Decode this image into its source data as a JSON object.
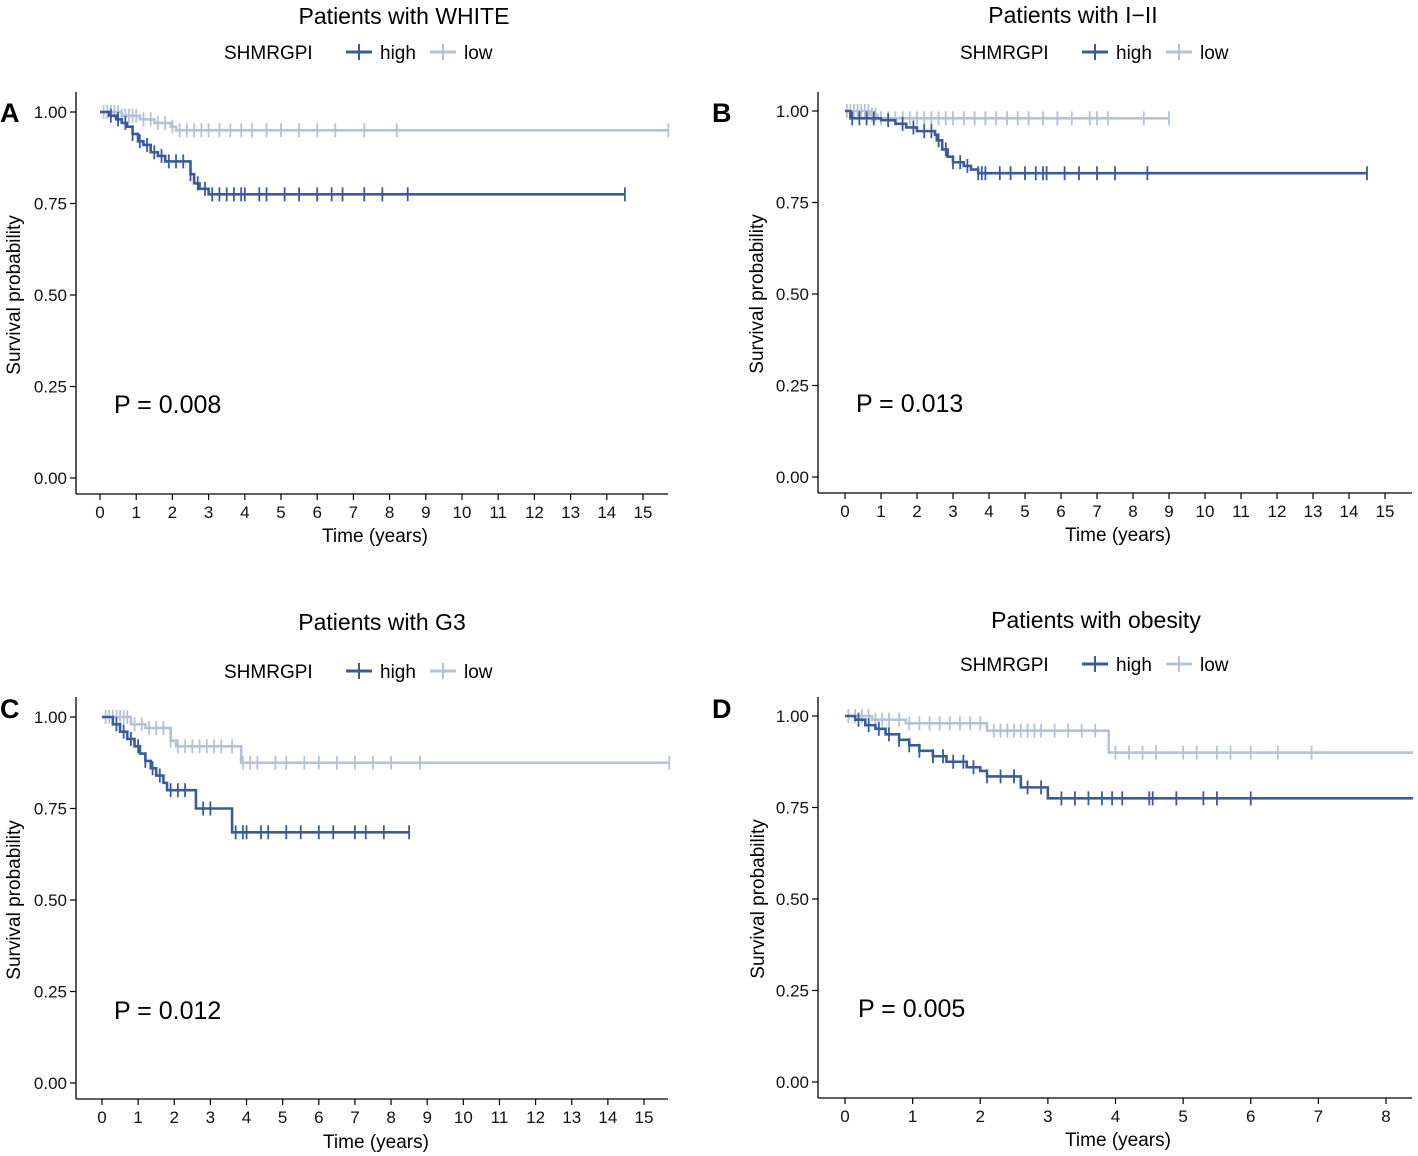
{
  "colors": {
    "high": "#3a5a9a",
    "low": "#b3c2d9"
  },
  "chart_data": [
    {
      "type": "line",
      "panel": "A",
      "title": "Patients with WHITE",
      "legend_title": "SHMRGPI",
      "legend": [
        "high",
        "low"
      ],
      "xlabel": "Time (years)",
      "ylabel": "Survival probability",
      "xlim": [
        0,
        15.7
      ],
      "ylim": [
        0,
        1
      ],
      "xticks": [
        "0",
        "1",
        "2",
        "3",
        "4",
        "5",
        "6",
        "7",
        "8",
        "9",
        "10",
        "11",
        "12",
        "13",
        "14",
        "15"
      ],
      "yticks": [
        "0.00",
        "0.25",
        "0.50",
        "0.75",
        "1.00"
      ],
      "p_value": "P = 0.008",
      "series": [
        {
          "name": "high",
          "steps": [
            [
              0,
              1
            ],
            [
              0.25,
              0.99
            ],
            [
              0.45,
              0.98
            ],
            [
              0.6,
              0.97
            ],
            [
              0.75,
              0.96
            ],
            [
              0.9,
              0.94
            ],
            [
              1.05,
              0.92
            ],
            [
              1.2,
              0.91
            ],
            [
              1.4,
              0.89
            ],
            [
              1.6,
              0.88
            ],
            [
              1.8,
              0.865
            ],
            [
              2.5,
              0.83
            ],
            [
              2.6,
              0.805
            ],
            [
              2.75,
              0.79
            ],
            [
              3.0,
              0.775
            ]
          ],
          "end": 14.5,
          "censors": [
            0.3,
            0.5,
            0.7,
            0.9,
            1.1,
            1.3,
            1.5,
            1.7,
            1.9,
            2.1,
            2.3,
            2.5,
            2.7,
            2.9,
            3.1,
            3.3,
            3.5,
            3.7,
            3.9,
            4.0,
            4.4,
            4.6,
            5.1,
            5.5,
            6.0,
            6.4,
            6.7,
            7.3,
            7.8,
            8.5,
            14.5
          ]
        },
        {
          "name": "low",
          "steps": [
            [
              0,
              1
            ],
            [
              0.6,
              0.99
            ],
            [
              1.1,
              0.98
            ],
            [
              1.5,
              0.97
            ],
            [
              1.95,
              0.96
            ],
            [
              2.1,
              0.95
            ]
          ],
          "end": 15.7,
          "censors": [
            0.1,
            0.2,
            0.3,
            0.4,
            0.5,
            0.6,
            0.7,
            0.8,
            0.9,
            1.0,
            1.2,
            1.4,
            1.6,
            1.8,
            2.0,
            2.2,
            2.4,
            2.6,
            2.8,
            3.0,
            3.3,
            3.6,
            3.9,
            4.2,
            4.6,
            5.0,
            5.5,
            6.0,
            6.5,
            7.3,
            8.2,
            15.7
          ]
        }
      ]
    },
    {
      "type": "line",
      "panel": "B",
      "title": "Patients with I−II",
      "legend_title": "SHMRGPI",
      "legend": [
        "high",
        "low"
      ],
      "xlabel": "Time (years)",
      "ylabel": "Survival probability",
      "xlim": [
        0,
        15.7
      ],
      "ylim": [
        0,
        1
      ],
      "xticks": [
        "0",
        "1",
        "2",
        "3",
        "4",
        "5",
        "6",
        "7",
        "8",
        "9",
        "10",
        "11",
        "12",
        "13",
        "14",
        "15"
      ],
      "yticks": [
        "0.00",
        "0.25",
        "0.50",
        "0.75",
        "1.00"
      ],
      "p_value": "P = 0.013",
      "series": [
        {
          "name": "high",
          "steps": [
            [
              0,
              1
            ],
            [
              0.15,
              0.98
            ],
            [
              1.0,
              0.975
            ],
            [
              1.4,
              0.965
            ],
            [
              1.7,
              0.955
            ],
            [
              2.0,
              0.945
            ],
            [
              2.5,
              0.935
            ],
            [
              2.55,
              0.92
            ],
            [
              2.7,
              0.895
            ],
            [
              2.85,
              0.875
            ],
            [
              3.0,
              0.86
            ],
            [
              3.3,
              0.85
            ],
            [
              3.5,
              0.84
            ],
            [
              3.7,
              0.83
            ]
          ],
          "end": 14.5,
          "censors": [
            0.2,
            0.4,
            0.6,
            0.8,
            1.2,
            1.6,
            1.9,
            2.2,
            2.4,
            2.6,
            2.8,
            3.0,
            3.2,
            3.4,
            3.7,
            3.8,
            3.9,
            4.3,
            4.6,
            5.0,
            5.3,
            5.5,
            5.6,
            6.1,
            6.5,
            7.0,
            7.5,
            8.4,
            14.5
          ]
        },
        {
          "name": "low",
          "steps": [
            [
              0,
              1
            ],
            [
              0.7,
              0.99
            ],
            [
              0.9,
              0.98
            ]
          ],
          "end": 9.0,
          "censors": [
            0.05,
            0.15,
            0.25,
            0.35,
            0.45,
            0.55,
            0.65,
            0.75,
            0.85,
            1.0,
            1.2,
            1.4,
            1.6,
            1.8,
            2.0,
            2.2,
            2.4,
            2.6,
            2.8,
            3.0,
            3.3,
            3.6,
            3.9,
            4.2,
            4.5,
            4.8,
            5.1,
            5.5,
            5.9,
            6.3,
            6.8,
            7.0,
            7.3,
            8.3,
            9.0
          ]
        }
      ]
    },
    {
      "type": "line",
      "panel": "C",
      "title": "Patients with G3",
      "legend_title": "SHMRGPI",
      "legend": [
        "high",
        "low"
      ],
      "xlabel": "Time (years)",
      "ylabel": "Survival probability",
      "xlim": [
        0,
        15.7
      ],
      "ylim": [
        0,
        1
      ],
      "xticks": [
        "0",
        "1",
        "2",
        "3",
        "4",
        "5",
        "6",
        "7",
        "8",
        "9",
        "10",
        "11",
        "12",
        "13",
        "14",
        "15"
      ],
      "yticks": [
        "0.00",
        "0.25",
        "0.50",
        "0.75",
        "1.00"
      ],
      "p_value": "P = 0.012",
      "series": [
        {
          "name": "high",
          "steps": [
            [
              0,
              1
            ],
            [
              0.3,
              0.98
            ],
            [
              0.5,
              0.96
            ],
            [
              0.7,
              0.94
            ],
            [
              0.9,
              0.92
            ],
            [
              1.05,
              0.9
            ],
            [
              1.2,
              0.88
            ],
            [
              1.35,
              0.86
            ],
            [
              1.5,
              0.84
            ],
            [
              1.7,
              0.82
            ],
            [
              1.8,
              0.8
            ],
            [
              2.6,
              0.75
            ],
            [
              3.6,
              0.685
            ]
          ],
          "end": 8.5,
          "censors": [
            0.4,
            0.6,
            0.8,
            1.0,
            1.2,
            1.4,
            1.6,
            1.9,
            2.1,
            2.3,
            2.8,
            3.0,
            3.7,
            3.9,
            4.0,
            4.4,
            4.6,
            5.1,
            5.5,
            6.0,
            6.4,
            7.0,
            7.3,
            7.8,
            8.5
          ]
        },
        {
          "name": "low",
          "steps": [
            [
              0,
              1
            ],
            [
              0.8,
              0.98
            ],
            [
              1.2,
              0.97
            ],
            [
              1.9,
              0.935
            ],
            [
              2.05,
              0.92
            ],
            [
              3.85,
              0.875
            ]
          ],
          "end": 15.7,
          "censors": [
            0.1,
            0.2,
            0.3,
            0.4,
            0.5,
            0.6,
            0.7,
            0.9,
            1.1,
            1.3,
            1.5,
            1.7,
            1.9,
            2.1,
            2.3,
            2.5,
            2.7,
            2.9,
            3.1,
            3.3,
            3.6,
            3.9,
            4.1,
            4.3,
            4.8,
            5.1,
            5.6,
            6.0,
            6.5,
            7.0,
            7.5,
            8.0,
            8.8,
            15.7
          ]
        }
      ]
    },
    {
      "type": "line",
      "panel": "D",
      "title": "Patients with obesity",
      "legend_title": "SHMRGPI",
      "legend": [
        "high",
        "low"
      ],
      "xlabel": "Time (years)",
      "ylabel": "Survival probability",
      "xlim": [
        0,
        8.4
      ],
      "ylim": [
        0,
        1
      ],
      "xticks": [
        "0",
        "1",
        "2",
        "3",
        "4",
        "5",
        "6",
        "7",
        "8"
      ],
      "yticks": [
        "0.00",
        "0.25",
        "0.50",
        "0.75",
        "1.00"
      ],
      "p_value": "P = 0.005",
      "series": [
        {
          "name": "high",
          "steps": [
            [
              0,
              1
            ],
            [
              0.15,
              0.99
            ],
            [
              0.3,
              0.975
            ],
            [
              0.45,
              0.965
            ],
            [
              0.6,
              0.95
            ],
            [
              0.8,
              0.935
            ],
            [
              0.95,
              0.92
            ],
            [
              1.1,
              0.905
            ],
            [
              1.3,
              0.89
            ],
            [
              1.5,
              0.875
            ],
            [
              1.8,
              0.86
            ],
            [
              2.0,
              0.85
            ],
            [
              2.1,
              0.835
            ],
            [
              2.6,
              0.805
            ],
            [
              3.0,
              0.775
            ]
          ],
          "end": 8.4,
          "censors": [
            0.2,
            0.35,
            0.5,
            0.65,
            0.8,
            0.95,
            1.1,
            1.3,
            1.45,
            1.6,
            1.75,
            1.9,
            2.1,
            2.3,
            2.5,
            2.7,
            2.9,
            3.2,
            3.4,
            3.6,
            3.8,
            3.95,
            4.1,
            4.5,
            4.55,
            4.9,
            5.3,
            5.5,
            6.0
          ]
        },
        {
          "name": "low",
          "steps": [
            [
              0,
              1
            ],
            [
              0.4,
              0.99
            ],
            [
              0.9,
              0.98
            ],
            [
              2.1,
              0.96
            ],
            [
              3.9,
              0.9
            ]
          ],
          "end": 8.4,
          "censors": [
            0.05,
            0.15,
            0.25,
            0.35,
            0.45,
            0.55,
            0.65,
            0.8,
            0.95,
            1.1,
            1.25,
            1.4,
            1.55,
            1.7,
            1.85,
            2.0,
            2.2,
            2.3,
            2.4,
            2.5,
            2.6,
            2.7,
            2.8,
            2.9,
            3.1,
            3.3,
            3.5,
            3.7,
            4.0,
            4.2,
            4.4,
            4.6,
            5.0,
            5.2,
            5.5,
            5.7,
            6.0,
            6.4,
            6.9
          ]
        }
      ]
    }
  ]
}
